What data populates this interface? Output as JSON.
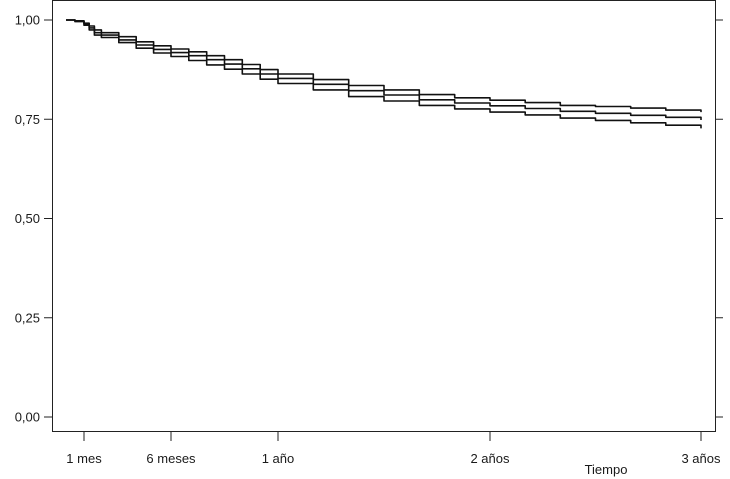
{
  "chart_data": {
    "type": "line",
    "title": "",
    "xlabel": "Tiempo",
    "ylabel": "",
    "xlim": [
      0,
      36
    ],
    "ylim": [
      0,
      1
    ],
    "x_ticks": [
      {
        "value": 1,
        "label": "1 mes"
      },
      {
        "value": 6,
        "label": "6 meses"
      },
      {
        "value": 12,
        "label": "1 año"
      },
      {
        "value": 24,
        "label": "2 años"
      },
      {
        "value": 36,
        "label": "3 años"
      }
    ],
    "y_ticks": [
      {
        "value": 0.0,
        "label": "0,00"
      },
      {
        "value": 0.25,
        "label": "0,25"
      },
      {
        "value": 0.5,
        "label": "0,50"
      },
      {
        "value": 0.75,
        "label": "0,75"
      },
      {
        "value": 1.0,
        "label": "1,00"
      }
    ],
    "grid": false,
    "series": [
      {
        "x": [
          0,
          0.5,
          1,
          1.3,
          1.6,
          2,
          3,
          4,
          5,
          6,
          7,
          8,
          9,
          10,
          11,
          12,
          14,
          16,
          18,
          20,
          22,
          24,
          26,
          28,
          30,
          32,
          34,
          36
        ],
        "y": [
          1.0,
          0.998,
          0.992,
          0.985,
          0.975,
          0.968,
          0.958,
          0.945,
          0.935,
          0.927,
          0.92,
          0.91,
          0.9,
          0.888,
          0.875,
          0.864,
          0.85,
          0.835,
          0.824,
          0.812,
          0.804,
          0.798,
          0.792,
          0.785,
          0.782,
          0.778,
          0.773,
          0.768
        ]
      },
      {
        "x": [
          0,
          0.5,
          1,
          1.3,
          1.6,
          2,
          3,
          4,
          5,
          6,
          7,
          8,
          9,
          10,
          11,
          12,
          14,
          16,
          18,
          20,
          22,
          24,
          26,
          28,
          30,
          32,
          34,
          36
        ],
        "y": [
          1.0,
          0.997,
          0.99,
          0.98,
          0.968,
          0.962,
          0.95,
          0.937,
          0.926,
          0.918,
          0.91,
          0.9,
          0.889,
          0.877,
          0.864,
          0.853,
          0.838,
          0.822,
          0.811,
          0.799,
          0.791,
          0.784,
          0.777,
          0.77,
          0.765,
          0.76,
          0.755,
          0.748
        ]
      },
      {
        "x": [
          0,
          0.5,
          1,
          1.3,
          1.6,
          2,
          3,
          4,
          5,
          6,
          7,
          8,
          9,
          10,
          11,
          12,
          14,
          16,
          18,
          20,
          22,
          24,
          26,
          28,
          30,
          32,
          34,
          36
        ],
        "y": [
          1.0,
          0.996,
          0.987,
          0.975,
          0.962,
          0.956,
          0.943,
          0.929,
          0.917,
          0.908,
          0.898,
          0.887,
          0.876,
          0.864,
          0.851,
          0.84,
          0.824,
          0.807,
          0.796,
          0.785,
          0.776,
          0.768,
          0.761,
          0.753,
          0.747,
          0.741,
          0.735,
          0.727
        ]
      }
    ]
  }
}
